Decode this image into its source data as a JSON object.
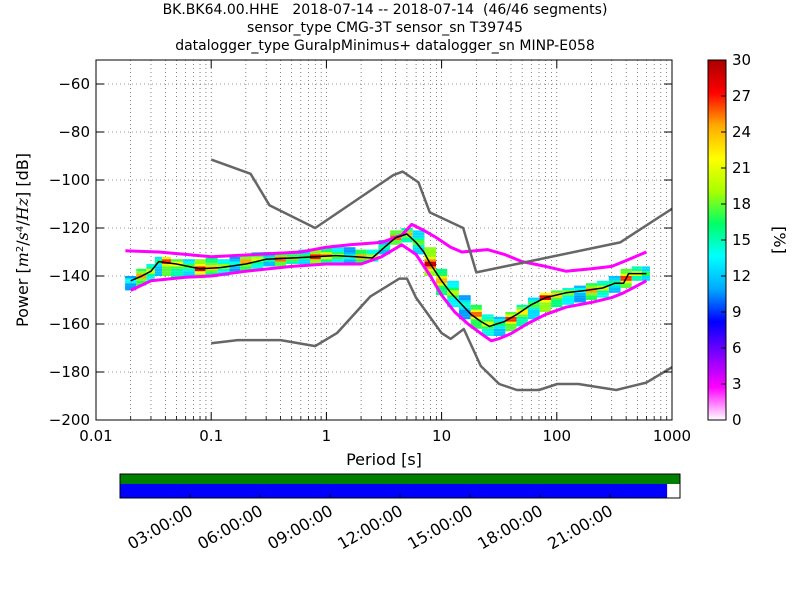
{
  "title_lines": [
    "BK.BK64.00.HHE   2018-07-14 -- 2018-07-14  (46/46 segments)",
    "sensor_type CMG-3T sensor_sn T39745",
    "datalogger_type GuralpMinimus+ datalogger_sn MINP-E058"
  ],
  "chart_data": {
    "type": "heatmap",
    "xlabel": "Period [s]",
    "ylabel_parts": [
      "Power [",
      "m",
      "2",
      "/",
      "s",
      "4",
      "/",
      "Hz",
      "] [dB]"
    ],
    "x_scale": "log",
    "xlim": [
      0.01,
      1000
    ],
    "ylim": [
      -200,
      -50
    ],
    "x_ticks": [
      {
        "value": 0.01,
        "label": "0.01"
      },
      {
        "value": 0.1,
        "label": "0.1"
      },
      {
        "value": 1,
        "label": "1"
      },
      {
        "value": 10,
        "label": "10"
      },
      {
        "value": 100,
        "label": "100"
      },
      {
        "value": 1000,
        "label": "1000"
      }
    ],
    "y_ticks": [
      {
        "value": -60,
        "label": "−60"
      },
      {
        "value": -80,
        "label": "−80"
      },
      {
        "value": -100,
        "label": "−100"
      },
      {
        "value": -120,
        "label": "−120"
      },
      {
        "value": -140,
        "label": "−140"
      },
      {
        "value": -160,
        "label": "−160"
      },
      {
        "value": -180,
        "label": "−180"
      },
      {
        "value": -200,
        "label": "−200"
      }
    ],
    "grid": "dotted",
    "colorbar": {
      "label": "[%]",
      "min": 0,
      "max": 30,
      "ticks": [
        {
          "value": 0,
          "label": "0"
        },
        {
          "value": 3,
          "label": "3"
        },
        {
          "value": 6,
          "label": "6"
        },
        {
          "value": 9,
          "label": "9"
        },
        {
          "value": 12,
          "label": "12"
        },
        {
          "value": 15,
          "label": "15"
        },
        {
          "value": 18,
          "label": "18"
        },
        {
          "value": 21,
          "label": "21"
        },
        {
          "value": 24,
          "label": "24"
        },
        {
          "value": 27,
          "label": "27"
        },
        {
          "value": 30,
          "label": "30"
        }
      ],
      "colors": [
        "#ffffff",
        "#ff00ff",
        "#8000ff",
        "#0000ff",
        "#00aaff",
        "#00ffff",
        "#00ff66",
        "#aaff00",
        "#ffff00",
        "#ffaa00",
        "#ff0000",
        "#aa0000"
      ]
    },
    "nhnm": {
      "name": "NHNM",
      "color": "#666666",
      "points": [
        [
          0.1,
          -91.5
        ],
        [
          0.22,
          -97.4
        ],
        [
          0.32,
          -110.5
        ],
        [
          0.8,
          -120
        ],
        [
          3.8,
          -98
        ],
        [
          4.6,
          -96.5
        ],
        [
          6.3,
          -101
        ],
        [
          7.9,
          -113.5
        ],
        [
          15.4,
          -120
        ],
        [
          20,
          -138.5
        ],
        [
          354.8,
          -126
        ],
        [
          1000,
          -112
        ]
      ]
    },
    "nlnm": {
      "name": "NLNM",
      "color": "#666666",
      "points": [
        [
          0.1,
          -168
        ],
        [
          0.17,
          -166.7
        ],
        [
          0.4,
          -166.7
        ],
        [
          0.8,
          -169.2
        ],
        [
          1.24,
          -163.7
        ],
        [
          2.4,
          -148.6
        ],
        [
          4.3,
          -141.1
        ],
        [
          5,
          -141.1
        ],
        [
          6,
          -149
        ],
        [
          10,
          -163.8
        ],
        [
          12,
          -166.2
        ],
        [
          15.6,
          -162.1
        ],
        [
          21.9,
          -177.5
        ],
        [
          31.6,
          -185
        ],
        [
          45,
          -187.5
        ],
        [
          70,
          -187.5
        ],
        [
          101,
          -185
        ],
        [
          154,
          -185
        ],
        [
          328,
          -187.5
        ],
        [
          600,
          -184.4
        ],
        [
          1000,
          -178
        ]
      ]
    },
    "mode": {
      "name": "mode",
      "color": "#000000",
      "points": [
        [
          0.02,
          -142
        ],
        [
          0.025,
          -140
        ],
        [
          0.03,
          -138
        ],
        [
          0.035,
          -134
        ],
        [
          0.05,
          -135
        ],
        [
          0.08,
          -137
        ],
        [
          0.12,
          -136.5
        ],
        [
          0.2,
          -135
        ],
        [
          0.3,
          -133
        ],
        [
          0.5,
          -132.5
        ],
        [
          0.8,
          -132
        ],
        [
          1.2,
          -131.5
        ],
        [
          1.8,
          -132
        ],
        [
          2.5,
          -132.5
        ],
        [
          3.2,
          -128
        ],
        [
          4,
          -124
        ],
        [
          5,
          -122.5
        ],
        [
          6,
          -126
        ],
        [
          7,
          -130
        ],
        [
          8,
          -135
        ],
        [
          10,
          -142
        ],
        [
          12,
          -147
        ],
        [
          15,
          -152
        ],
        [
          18,
          -156
        ],
        [
          22,
          -159
        ],
        [
          26,
          -161
        ],
        [
          30,
          -160
        ],
        [
          35,
          -159
        ],
        [
          45,
          -156
        ],
        [
          60,
          -152
        ],
        [
          80,
          -149
        ],
        [
          120,
          -147
        ],
        [
          180,
          -146
        ],
        [
          250,
          -145
        ],
        [
          320,
          -143
        ],
        [
          380,
          -143
        ],
        [
          420,
          -139
        ],
        [
          600,
          -139
        ]
      ]
    },
    "magenta_upper": {
      "name": "upper-tail",
      "color": "#ff00ff",
      "points": [
        [
          0.018,
          -129.5
        ],
        [
          0.035,
          -130
        ],
        [
          0.06,
          -131
        ],
        [
          0.1,
          -132
        ],
        [
          0.25,
          -131
        ],
        [
          0.6,
          -130
        ],
        [
          1.0,
          -128
        ],
        [
          1.6,
          -127
        ],
        [
          3.0,
          -126
        ],
        [
          4.5,
          -123
        ],
        [
          5.5,
          -118.5
        ],
        [
          7,
          -121
        ],
        [
          9,
          -124
        ],
        [
          12,
          -128
        ],
        [
          15,
          -130
        ],
        [
          25,
          -129
        ],
        [
          35,
          -131
        ],
        [
          50,
          -134
        ],
        [
          80,
          -136
        ],
        [
          120,
          -138
        ],
        [
          200,
          -137
        ],
        [
          300,
          -136
        ],
        [
          380,
          -134
        ],
        [
          600,
          -130
        ]
      ]
    },
    "magenta_lower": {
      "name": "lower-tail",
      "color": "#ff00ff",
      "points": [
        [
          0.02,
          -146
        ],
        [
          0.03,
          -142
        ],
        [
          0.06,
          -140.5
        ],
        [
          0.1,
          -140
        ],
        [
          0.2,
          -138
        ],
        [
          0.5,
          -136
        ],
        [
          1,
          -135
        ],
        [
          2,
          -135
        ],
        [
          3,
          -132
        ],
        [
          4.5,
          -127
        ],
        [
          6,
          -131
        ],
        [
          8,
          -140
        ],
        [
          10,
          -148
        ],
        [
          13,
          -155
        ],
        [
          17,
          -160
        ],
        [
          22,
          -164
        ],
        [
          27,
          -167
        ],
        [
          32,
          -166
        ],
        [
          40,
          -164
        ],
        [
          55,
          -160
        ],
        [
          80,
          -156
        ],
        [
          120,
          -153
        ],
        [
          200,
          -151
        ],
        [
          300,
          -149
        ],
        [
          380,
          -147
        ],
        [
          600,
          -142
        ]
      ]
    },
    "histogram": [
      {
        "period": 0.02,
        "low": -146,
        "high": -140,
        "mode": -142
      },
      {
        "period": 0.025,
        "low": -144,
        "high": -137,
        "mode": -140
      },
      {
        "period": 0.03,
        "low": -142,
        "high": -135,
        "mode": -138
      },
      {
        "period": 0.035,
        "low": -140,
        "high": -132,
        "mode": -134
      },
      {
        "period": 0.04,
        "low": -140,
        "high": -132,
        "mode": -134
      },
      {
        "period": 0.05,
        "low": -141,
        "high": -133,
        "mode": -135
      },
      {
        "period": 0.065,
        "low": -141,
        "high": -133,
        "mode": -136
      },
      {
        "period": 0.08,
        "low": -141,
        "high": -133,
        "mode": -137
      },
      {
        "period": 0.1,
        "low": -140.5,
        "high": -133,
        "mode": -136.5
      },
      {
        "period": 0.13,
        "low": -140,
        "high": -133,
        "mode": -136
      },
      {
        "period": 0.16,
        "low": -139,
        "high": -132,
        "mode": -135
      },
      {
        "period": 0.2,
        "low": -138,
        "high": -131,
        "mode": -134
      },
      {
        "period": 0.25,
        "low": -137,
        "high": -130,
        "mode": -133
      },
      {
        "period": 0.32,
        "low": -136,
        "high": -130,
        "mode": -133
      },
      {
        "period": 0.4,
        "low": -136,
        "high": -130,
        "mode": -133
      },
      {
        "period": 0.5,
        "low": -135,
        "high": -130,
        "mode": -132.5
      },
      {
        "period": 0.65,
        "low": -135,
        "high": -129,
        "mode": -132
      },
      {
        "period": 0.8,
        "low": -135,
        "high": -129,
        "mode": -132
      },
      {
        "period": 1.0,
        "low": -135,
        "high": -128,
        "mode": -131.5
      },
      {
        "period": 1.25,
        "low": -135,
        "high": -127,
        "mode": -131.5
      },
      {
        "period": 1.6,
        "low": -135,
        "high": -128,
        "mode": -132
      },
      {
        "period": 2.0,
        "low": -135,
        "high": -129,
        "mode": -132
      },
      {
        "period": 2.5,
        "low": -134,
        "high": -129,
        "mode": -132
      },
      {
        "period": 3.2,
        "low": -131,
        "high": -125,
        "mode": -128
      },
      {
        "period": 4.0,
        "low": -127,
        "high": -121,
        "mode": -124
      },
      {
        "period": 5.0,
        "low": -126,
        "high": -120,
        "mode": -122.5
      },
      {
        "period": 6.3,
        "low": -131,
        "high": -121,
        "mode": -126
      },
      {
        "period": 8.0,
        "low": -140,
        "high": -128,
        "mode": -135
      },
      {
        "period": 10,
        "low": -148,
        "high": -137,
        "mode": -142
      },
      {
        "period": 12.5,
        "low": -153,
        "high": -142,
        "mode": -147
      },
      {
        "period": 16,
        "low": -158,
        "high": -148,
        "mode": -152
      },
      {
        "period": 20,
        "low": -162,
        "high": -152,
        "mode": -156
      },
      {
        "period": 25,
        "low": -165,
        "high": -156,
        "mode": -160
      },
      {
        "period": 32,
        "low": -165,
        "high": -157,
        "mode": -160
      },
      {
        "period": 40,
        "low": -163,
        "high": -155,
        "mode": -158
      },
      {
        "period": 50,
        "low": -161,
        "high": -152,
        "mode": -155
      },
      {
        "period": 63,
        "low": -158,
        "high": -149,
        "mode": -152
      },
      {
        "period": 80,
        "low": -155,
        "high": -147,
        "mode": -149
      },
      {
        "period": 100,
        "low": -153,
        "high": -146,
        "mode": -148
      },
      {
        "period": 125,
        "low": -152,
        "high": -145,
        "mode": -147
      },
      {
        "period": 160,
        "low": -151,
        "high": -144,
        "mode": -146
      },
      {
        "period": 200,
        "low": -150,
        "high": -143,
        "mode": -146
      },
      {
        "period": 250,
        "low": -149,
        "high": -142,
        "mode": -145
      },
      {
        "period": 320,
        "low": -147,
        "high": -140,
        "mode": -143
      },
      {
        "period": 400,
        "low": -145,
        "high": -137,
        "mode": -141
      },
      {
        "period": 500,
        "low": -142,
        "high": -136,
        "mode": -139
      },
      {
        "period": 600,
        "low": -142,
        "high": -136,
        "mode": -139
      }
    ],
    "time_coverage": {
      "tick_labels": [
        "03:00:00",
        "06:00:00",
        "09:00:00",
        "12:00:00",
        "15:00:00",
        "18:00:00",
        "21:00:00"
      ],
      "hours_total": 24,
      "data_fraction": 0.977,
      "data_color": "#0000ff",
      "segment_color": "#008000"
    }
  }
}
